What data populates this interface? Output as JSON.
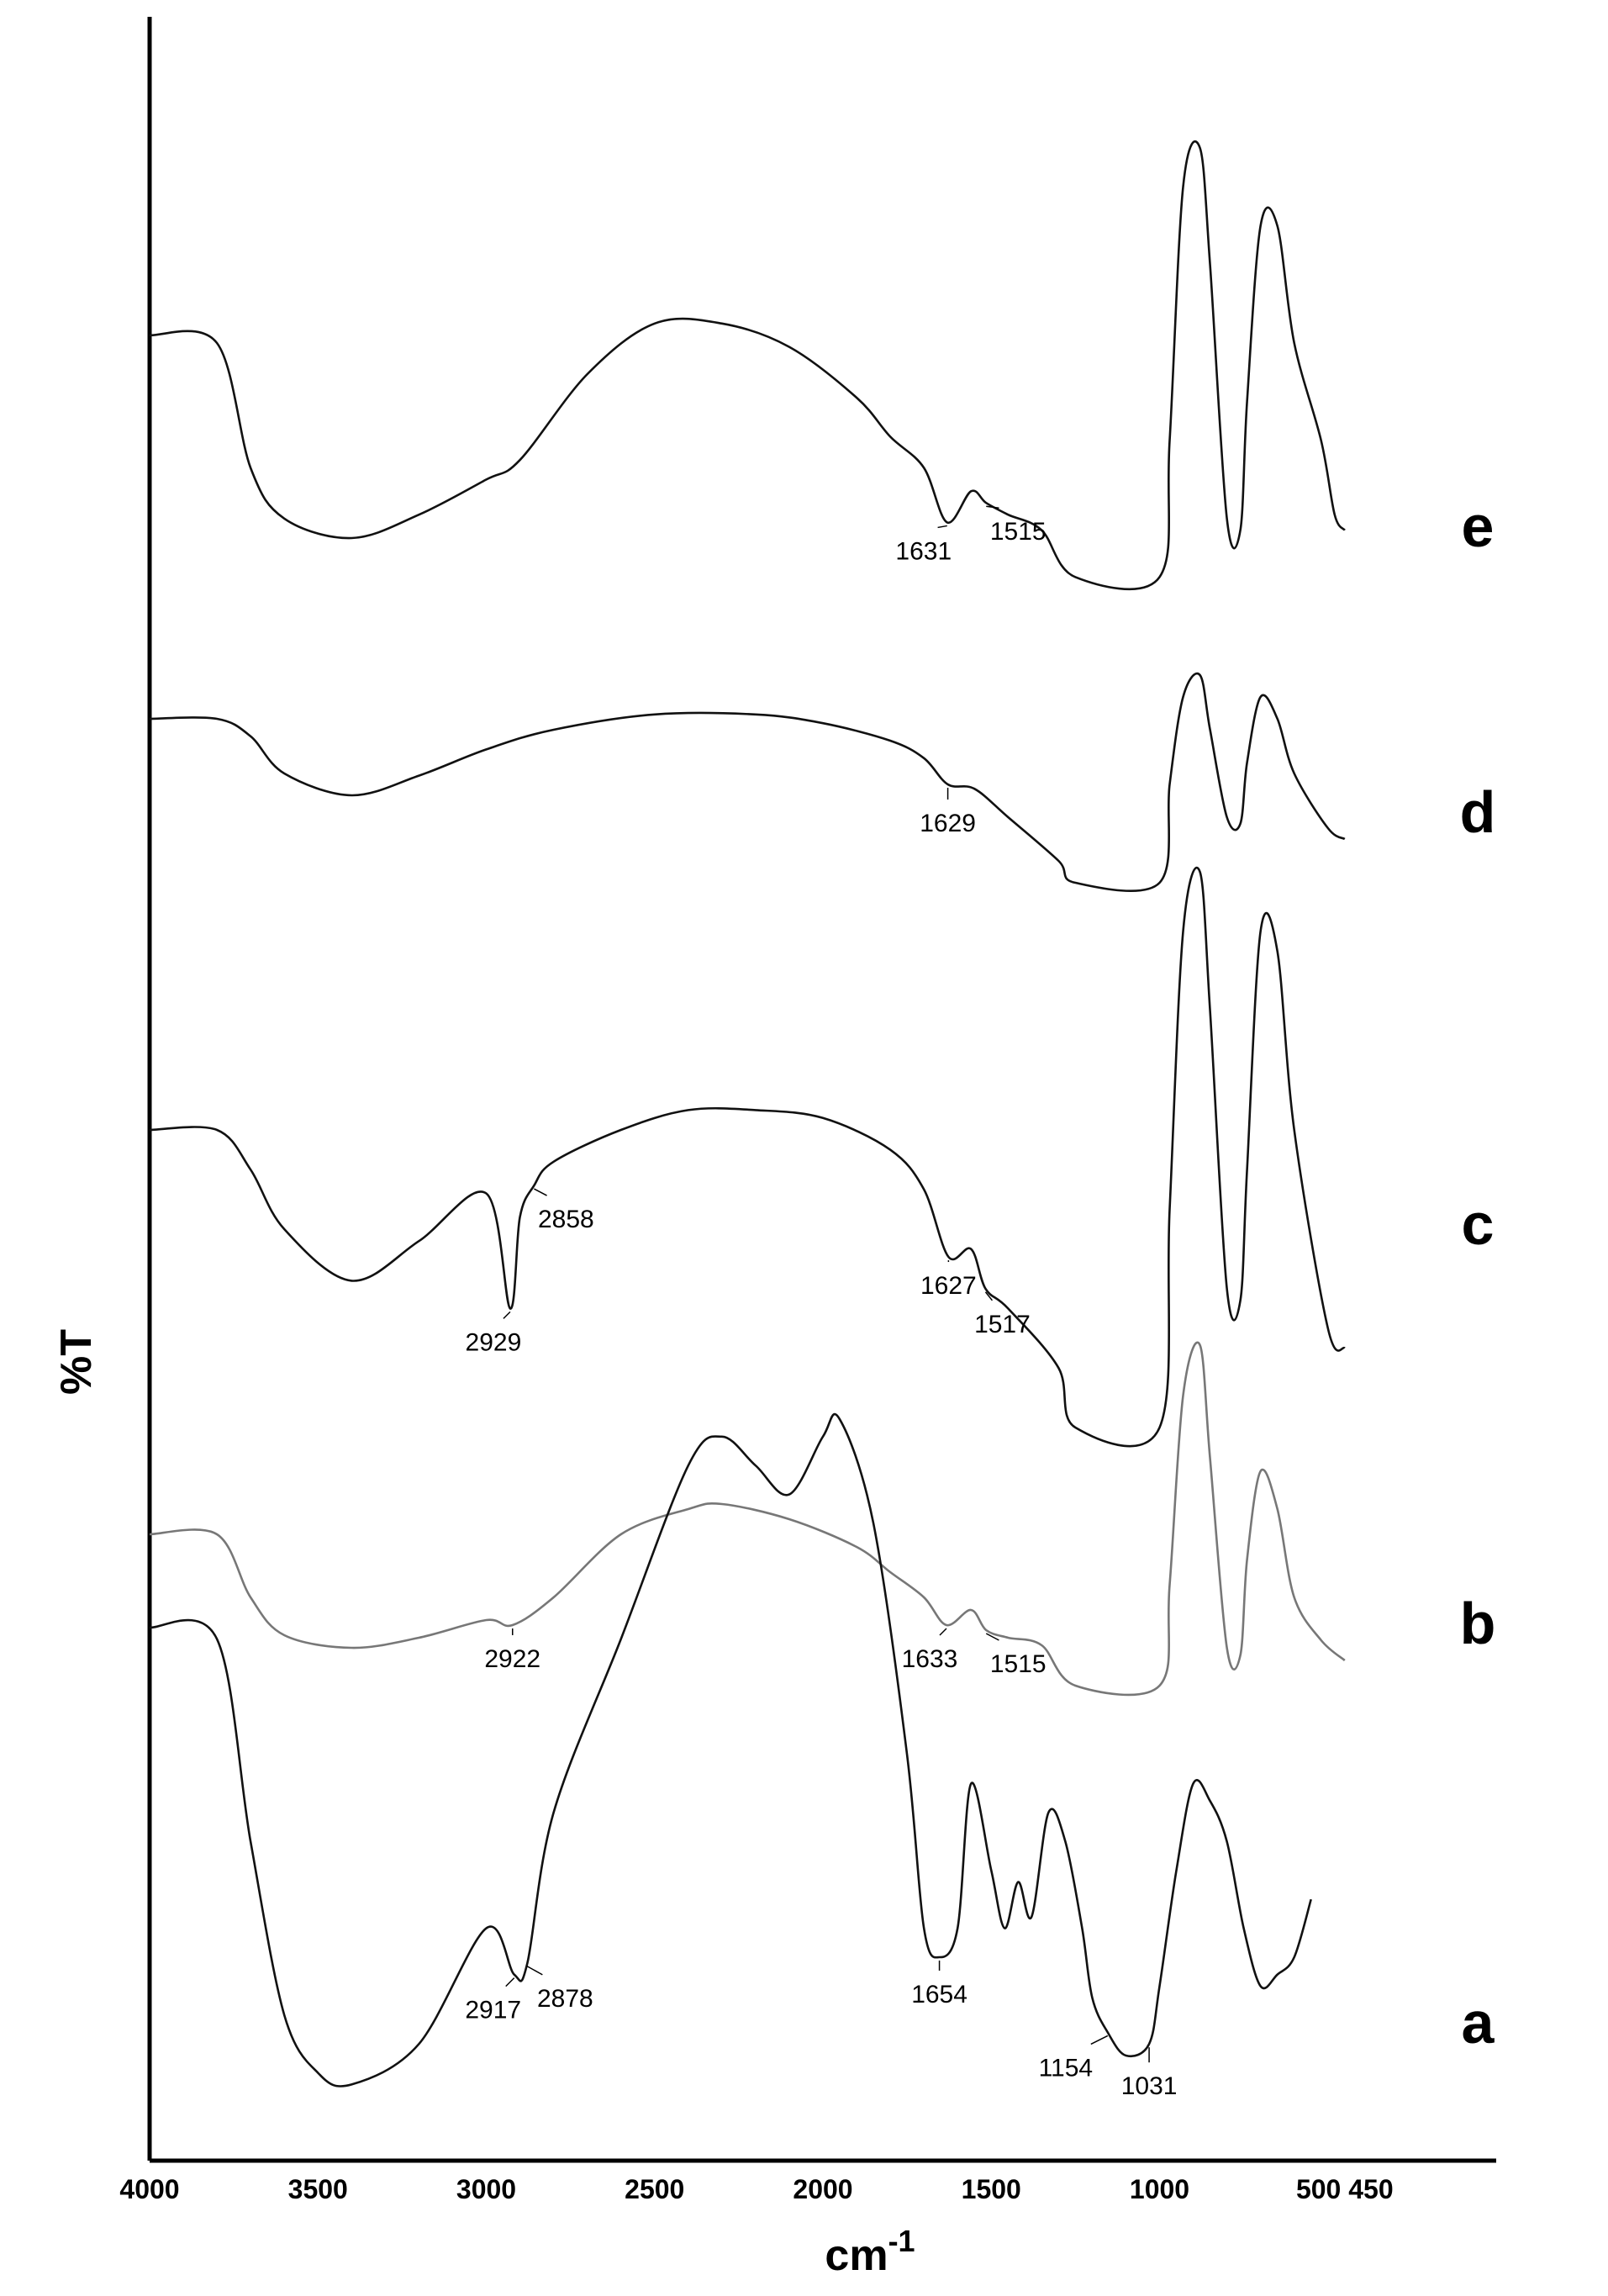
{
  "chart_data": {
    "type": "line",
    "title": "",
    "xlabel": "cm",
    "xlabel_superscript": "-1",
    "ylabel": "%T",
    "xlim": [
      4000,
      0
    ],
    "x_reversed": true,
    "grid": false,
    "tick_values": [
      4000,
      3500,
      3000,
      2500,
      2000,
      1500,
      1000
    ],
    "tick_labels": [
      "4000",
      "3500",
      "3000",
      "2500",
      "2000",
      "1500",
      "1000"
    ],
    "extra_tick_label": "500 450",
    "series": [
      {
        "name": "e",
        "color": "#111111",
        "baseline": 0.6,
        "scale": 1.0,
        "points": [
          [
            4000,
            0.52
          ],
          [
            3800,
            0.5
          ],
          [
            3700,
            0.18
          ],
          [
            3600,
            0.05
          ],
          [
            3400,
            0.0
          ],
          [
            3200,
            0.06
          ],
          [
            3000,
            0.15
          ],
          [
            2900,
            0.2
          ],
          [
            2700,
            0.42
          ],
          [
            2500,
            0.55
          ],
          [
            2300,
            0.55
          ],
          [
            2100,
            0.49
          ],
          [
            1900,
            0.36
          ],
          [
            1800,
            0.26
          ],
          [
            1700,
            0.18
          ],
          [
            1631,
            0.04
          ],
          [
            1560,
            0.12
          ],
          [
            1515,
            0.09
          ],
          [
            1450,
            0.06
          ],
          [
            1350,
            0.02
          ],
          [
            1250,
            -0.1
          ],
          [
            1000,
            -0.1
          ],
          [
            970,
            0.25
          ],
          [
            930,
            0.9
          ],
          [
            880,
            1.0
          ],
          [
            850,
            0.7
          ],
          [
            800,
            0.05
          ],
          [
            760,
            0.02
          ],
          [
            740,
            0.35
          ],
          [
            700,
            0.8
          ],
          [
            650,
            0.8
          ],
          [
            600,
            0.5
          ],
          [
            520,
            0.25
          ],
          [
            480,
            0.06
          ],
          [
            450,
            0.02
          ]
        ]
      },
      {
        "name": "d",
        "color": "#111111",
        "baseline": 0.45,
        "scale": 1.0,
        "points": [
          [
            4000,
            0.5
          ],
          [
            3800,
            0.5
          ],
          [
            3700,
            0.42
          ],
          [
            3600,
            0.25
          ],
          [
            3400,
            0.15
          ],
          [
            3200,
            0.24
          ],
          [
            3000,
            0.36
          ],
          [
            2800,
            0.45
          ],
          [
            2500,
            0.52
          ],
          [
            2200,
            0.52
          ],
          [
            2000,
            0.48
          ],
          [
            1800,
            0.4
          ],
          [
            1700,
            0.32
          ],
          [
            1629,
            0.2
          ],
          [
            1550,
            0.18
          ],
          [
            1450,
            0.05
          ],
          [
            1300,
            -0.15
          ],
          [
            1250,
            -0.25
          ],
          [
            1000,
            -0.25
          ],
          [
            970,
            0.2
          ],
          [
            930,
            0.6
          ],
          [
            880,
            0.7
          ],
          [
            850,
            0.45
          ],
          [
            800,
            0.05
          ],
          [
            760,
            0.02
          ],
          [
            740,
            0.3
          ],
          [
            700,
            0.6
          ],
          [
            650,
            0.5
          ],
          [
            600,
            0.25
          ],
          [
            500,
            0.0
          ],
          [
            450,
            -0.05
          ]
        ]
      },
      {
        "name": "c",
        "color": "#111111",
        "baseline": 0.58,
        "scale": 1.0,
        "points": [
          [
            4000,
            0.5
          ],
          [
            3800,
            0.5
          ],
          [
            3700,
            0.4
          ],
          [
            3600,
            0.25
          ],
          [
            3400,
            0.12
          ],
          [
            3200,
            0.22
          ],
          [
            3000,
            0.34
          ],
          [
            2929,
            0.05
          ],
          [
            2900,
            0.28
          ],
          [
            2858,
            0.36
          ],
          [
            2800,
            0.42
          ],
          [
            2600,
            0.5
          ],
          [
            2400,
            0.55
          ],
          [
            2200,
            0.55
          ],
          [
            2000,
            0.53
          ],
          [
            1800,
            0.45
          ],
          [
            1700,
            0.35
          ],
          [
            1627,
            0.18
          ],
          [
            1560,
            0.2
          ],
          [
            1517,
            0.1
          ],
          [
            1450,
            0.05
          ],
          [
            1300,
            -0.1
          ],
          [
            1250,
            -0.25
          ],
          [
            1000,
            -0.25
          ],
          [
            970,
            0.3
          ],
          [
            930,
            1.0
          ],
          [
            880,
            1.15
          ],
          [
            850,
            0.8
          ],
          [
            800,
            0.1
          ],
          [
            760,
            0.07
          ],
          [
            740,
            0.4
          ],
          [
            700,
            1.0
          ],
          [
            650,
            0.95
          ],
          [
            600,
            0.5
          ],
          [
            500,
            0.0
          ],
          [
            450,
            -0.05
          ]
        ]
      },
      {
        "name": "b",
        "color": "#777777",
        "baseline": 0.48,
        "scale": 1.0,
        "points": [
          [
            4000,
            0.5
          ],
          [
            3800,
            0.5
          ],
          [
            3700,
            0.25
          ],
          [
            3600,
            0.1
          ],
          [
            3400,
            0.05
          ],
          [
            3200,
            0.09
          ],
          [
            3000,
            0.16
          ],
          [
            2922,
            0.14
          ],
          [
            2800,
            0.25
          ],
          [
            2600,
            0.5
          ],
          [
            2400,
            0.6
          ],
          [
            2300,
            0.62
          ],
          [
            2100,
            0.56
          ],
          [
            1900,
            0.45
          ],
          [
            1800,
            0.35
          ],
          [
            1700,
            0.25
          ],
          [
            1633,
            0.14
          ],
          [
            1560,
            0.2
          ],
          [
            1515,
            0.12
          ],
          [
            1450,
            0.09
          ],
          [
            1350,
            0.06
          ],
          [
            1250,
            -0.1
          ],
          [
            1000,
            -0.1
          ],
          [
            970,
            0.3
          ],
          [
            930,
            1.05
          ],
          [
            880,
            1.25
          ],
          [
            850,
            0.8
          ],
          [
            800,
            0.05
          ],
          [
            760,
            0.02
          ],
          [
            740,
            0.4
          ],
          [
            700,
            0.75
          ],
          [
            650,
            0.6
          ],
          [
            600,
            0.25
          ],
          [
            520,
            0.08
          ],
          [
            450,
            0.0
          ]
        ]
      },
      {
        "name": "a",
        "color": "#111111",
        "baseline": 0.7,
        "scale": 1.0,
        "points": [
          [
            4000,
            0.82
          ],
          [
            3800,
            0.8
          ],
          [
            3700,
            0.45
          ],
          [
            3600,
            0.15
          ],
          [
            3500,
            0.05
          ],
          [
            3400,
            0.03
          ],
          [
            3200,
            0.1
          ],
          [
            3000,
            0.3
          ],
          [
            2917,
            0.22
          ],
          [
            2878,
            0.24
          ],
          [
            2800,
            0.5
          ],
          [
            2600,
            0.8
          ],
          [
            2400,
            1.1
          ],
          [
            2300,
            1.15
          ],
          [
            2200,
            1.1
          ],
          [
            2100,
            1.05
          ],
          [
            2000,
            1.15
          ],
          [
            1950,
            1.18
          ],
          [
            1850,
            1.0
          ],
          [
            1750,
            0.6
          ],
          [
            1700,
            0.3
          ],
          [
            1654,
            0.25
          ],
          [
            1600,
            0.3
          ],
          [
            1560,
            0.55
          ],
          [
            1500,
            0.4
          ],
          [
            1460,
            0.3
          ],
          [
            1420,
            0.38
          ],
          [
            1380,
            0.32
          ],
          [
            1330,
            0.5
          ],
          [
            1280,
            0.45
          ],
          [
            1230,
            0.3
          ],
          [
            1200,
            0.18
          ],
          [
            1154,
            0.12
          ],
          [
            1100,
            0.08
          ],
          [
            1031,
            0.1
          ],
          [
            1000,
            0.2
          ],
          [
            950,
            0.4
          ],
          [
            900,
            0.55
          ],
          [
            850,
            0.52
          ],
          [
            800,
            0.45
          ],
          [
            750,
            0.3
          ],
          [
            700,
            0.2
          ],
          [
            650,
            0.22
          ],
          [
            600,
            0.25
          ],
          [
            550,
            0.35
          ]
        ]
      }
    ],
    "annotations": [
      {
        "series": "e",
        "x": 1631,
        "label": "1631"
      },
      {
        "series": "e",
        "x": 1515,
        "label": "1515"
      },
      {
        "series": "d",
        "x": 1629,
        "label": "1629"
      },
      {
        "series": "c",
        "x": 2929,
        "label": "2929"
      },
      {
        "series": "c",
        "x": 2858,
        "label": "2858"
      },
      {
        "series": "c",
        "x": 1627,
        "label": "1627"
      },
      {
        "series": "c",
        "x": 1517,
        "label": "1517"
      },
      {
        "series": "b",
        "x": 2922,
        "label": "2922"
      },
      {
        "series": "b",
        "x": 1633,
        "label": "1633"
      },
      {
        "series": "b",
        "x": 1515,
        "label": "1515"
      },
      {
        "series": "a",
        "x": 2917,
        "label": "2917"
      },
      {
        "series": "a",
        "x": 2878,
        "label": "2878"
      },
      {
        "series": "a",
        "x": 1654,
        "label": "1654"
      },
      {
        "series": "a",
        "x": 1154,
        "label": "1154"
      },
      {
        "series": "a",
        "x": 1031,
        "label": "1031"
      }
    ]
  }
}
